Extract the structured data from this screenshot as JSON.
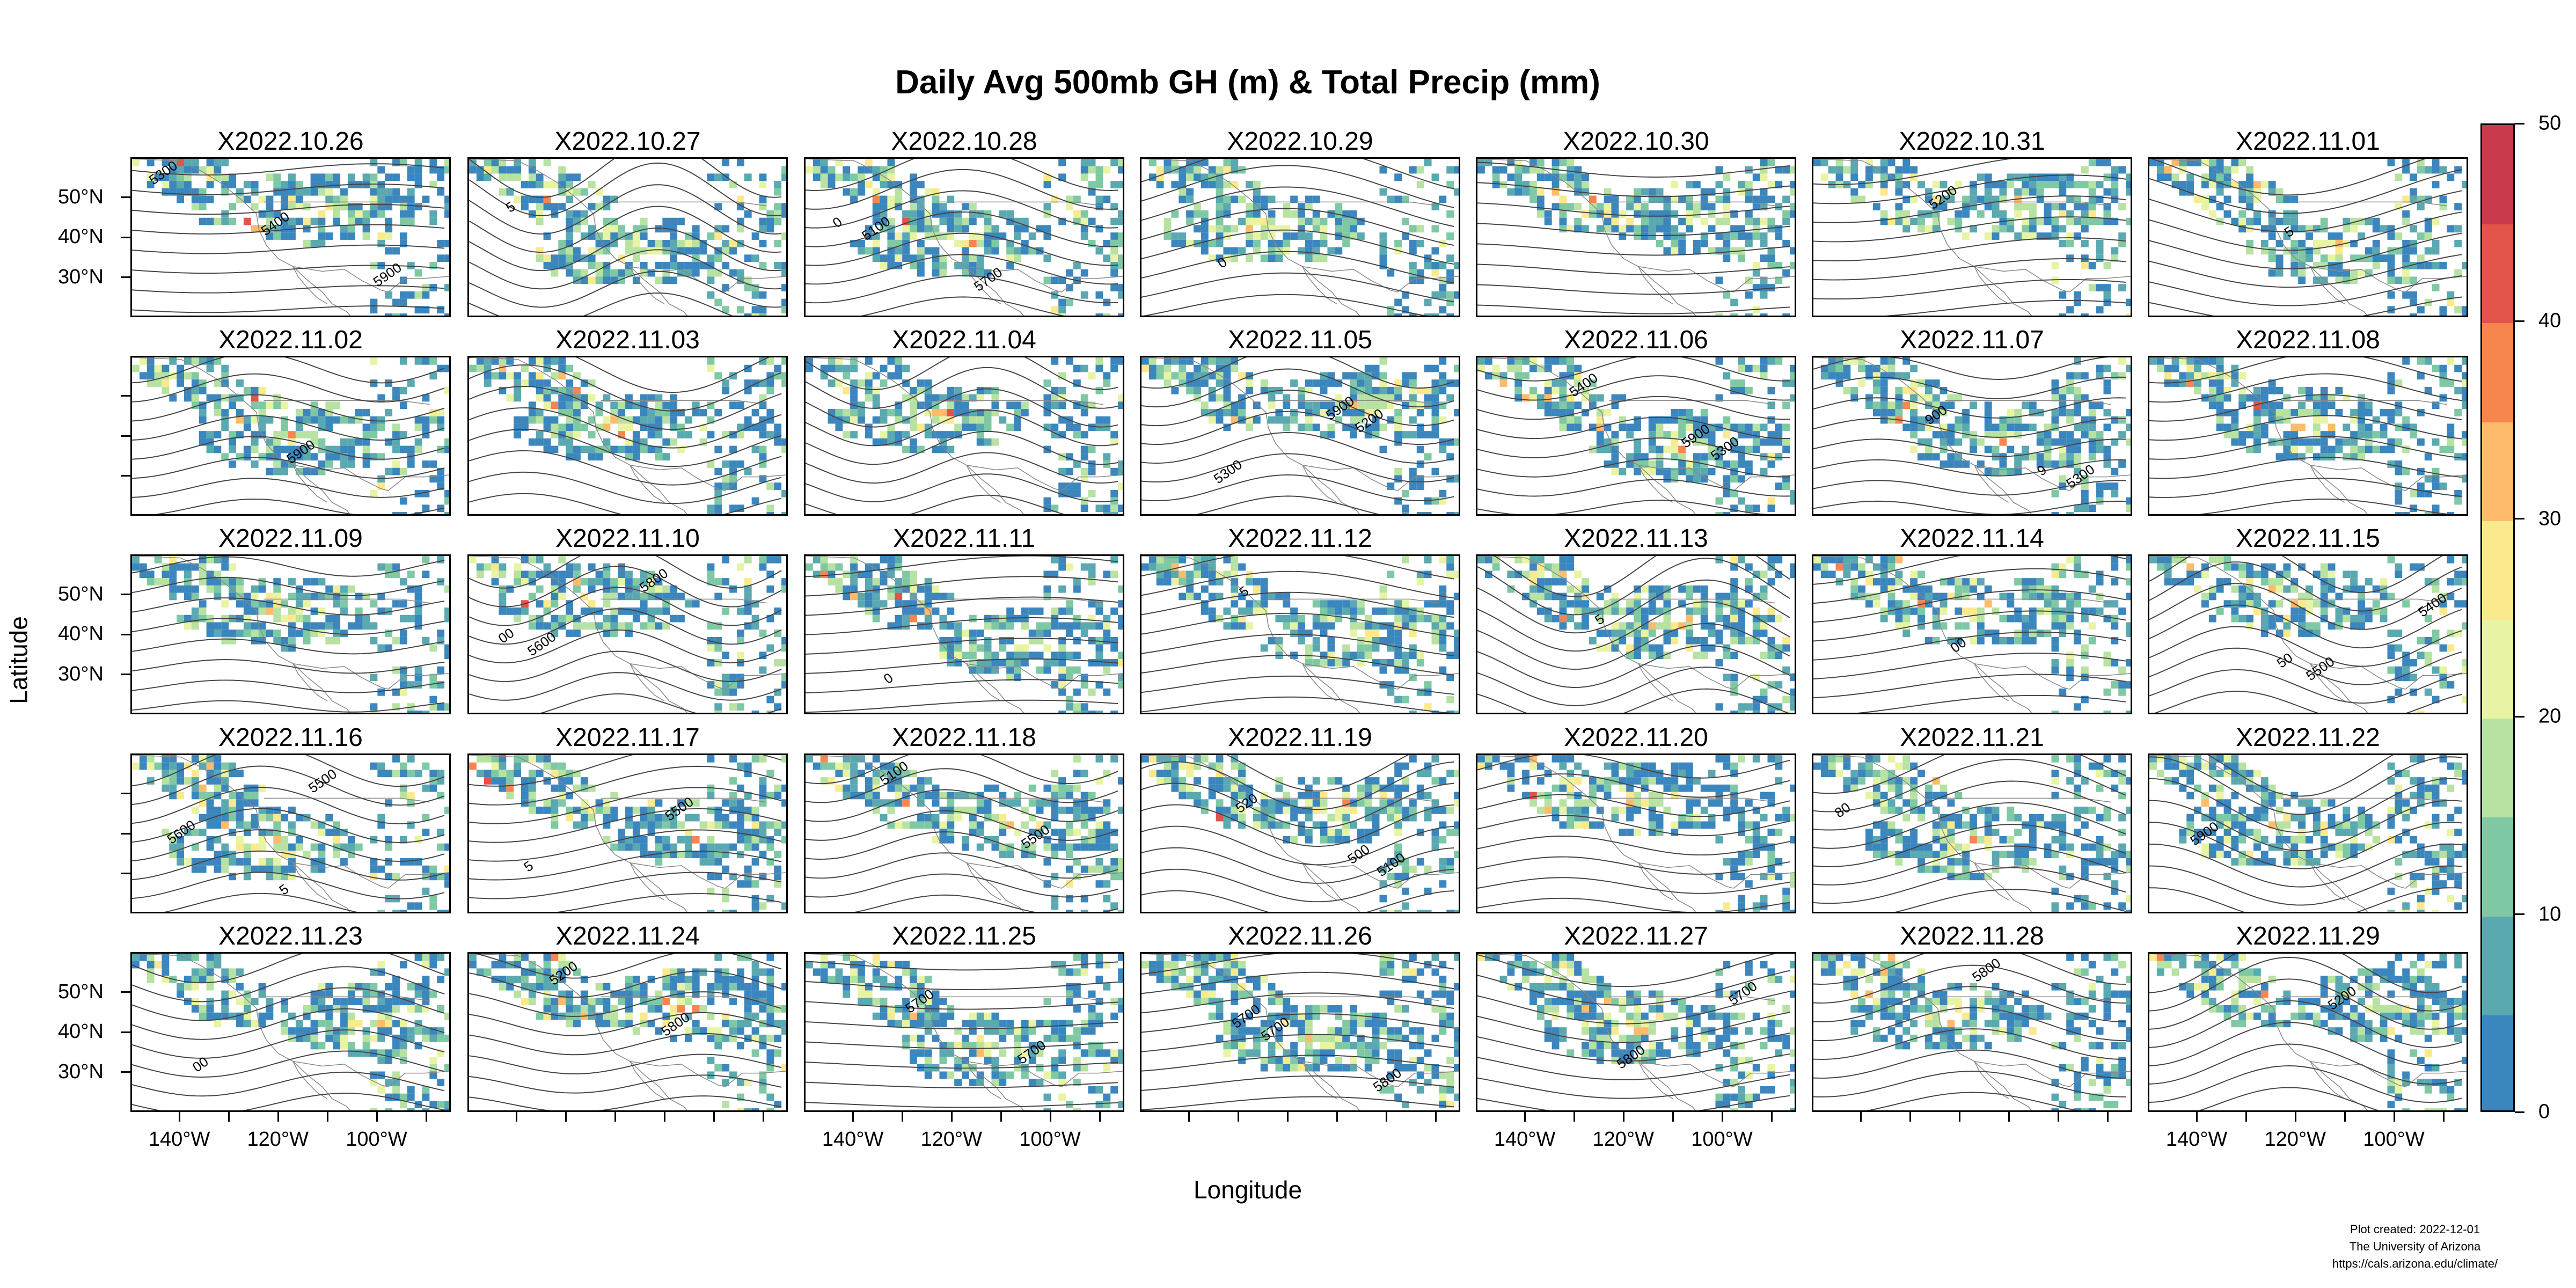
{
  "chart_data": {
    "type": "heatmap",
    "title": "Daily Avg 500mb GH (m) & Total Precip (mm)",
    "xlabel": "Longitude",
    "ylabel": "Latitude",
    "layout": {
      "rows": 5,
      "cols": 7
    },
    "panels": [
      {
        "title": "X2022.10.26",
        "contours": [
          "5300",
          "5400",
          "5900"
        ]
      },
      {
        "title": "X2022.10.27",
        "contours": [
          "5"
        ]
      },
      {
        "title": "X2022.10.28",
        "contours": [
          "5100",
          "5700",
          "0"
        ]
      },
      {
        "title": "X2022.10.29",
        "contours": [
          "0"
        ]
      },
      {
        "title": "X2022.10.30",
        "contours": []
      },
      {
        "title": "X2022.10.31",
        "contours": [
          "5200"
        ]
      },
      {
        "title": "X2022.11.01",
        "contours": [
          "5"
        ]
      },
      {
        "title": "X2022.11.02",
        "contours": [
          "5900"
        ]
      },
      {
        "title": "X2022.11.03",
        "contours": []
      },
      {
        "title": "X2022.11.04",
        "contours": []
      },
      {
        "title": "X2022.11.05",
        "contours": [
          "5200",
          "5300",
          "5900"
        ]
      },
      {
        "title": "X2022.11.06",
        "contours": [
          "5300",
          "5400",
          "5900"
        ]
      },
      {
        "title": "X2022.11.07",
        "contours": [
          "5300",
          "900",
          "9"
        ]
      },
      {
        "title": "X2022.11.08",
        "contours": []
      },
      {
        "title": "X2022.11.09",
        "contours": []
      },
      {
        "title": "X2022.11.10",
        "contours": [
          "5600",
          "5800",
          "00"
        ]
      },
      {
        "title": "X2022.11.11",
        "contours": [
          "0"
        ]
      },
      {
        "title": "X2022.11.12",
        "contours": [
          "5"
        ]
      },
      {
        "title": "X2022.11.13",
        "contours": [
          "5"
        ]
      },
      {
        "title": "X2022.11.14",
        "contours": [
          "00"
        ]
      },
      {
        "title": "X2022.11.15",
        "contours": [
          "5500",
          "5400",
          "50"
        ]
      },
      {
        "title": "X2022.11.16",
        "contours": [
          "5500",
          "5600",
          "5"
        ]
      },
      {
        "title": "X2022.11.17",
        "contours": [
          "5500",
          "5"
        ]
      },
      {
        "title": "X2022.11.18",
        "contours": [
          "5500",
          "5100"
        ]
      },
      {
        "title": "X2022.11.19",
        "contours": [
          "5100",
          "520",
          "500"
        ]
      },
      {
        "title": "X2022.11.20",
        "contours": []
      },
      {
        "title": "X2022.11.21",
        "contours": [
          "80"
        ]
      },
      {
        "title": "X2022.11.22",
        "contours": [
          "5900"
        ]
      },
      {
        "title": "X2022.11.23",
        "contours": [
          "00"
        ]
      },
      {
        "title": "X2022.11.24",
        "contours": [
          "5200",
          "5800"
        ]
      },
      {
        "title": "X2022.11.25",
        "contours": [
          "5700",
          "5700"
        ]
      },
      {
        "title": "X2022.11.26",
        "contours": [
          "5700",
          "5800",
          "5700"
        ]
      },
      {
        "title": "X2022.11.27",
        "contours": [
          "5800",
          "5700"
        ]
      },
      {
        "title": "X2022.11.28",
        "contours": [
          "5800"
        ]
      },
      {
        "title": "X2022.11.29",
        "contours": [
          "5200"
        ]
      }
    ],
    "x_ticks": [
      "140°W",
      "120°W",
      "100°W"
    ],
    "y_ticks": [
      "50°N",
      "40°N",
      "30°N"
    ],
    "xlim": [
      -150,
      -85
    ],
    "ylim": [
      20,
      60
    ],
    "colorbar": {
      "label_values": [
        "0",
        "10",
        "20",
        "30",
        "40",
        "50"
      ],
      "range": [
        0,
        50
      ],
      "colors": [
        "#3b86bd",
        "#5aa8b0",
        "#7fc8a4",
        "#b7e2a2",
        "#e8f4a4",
        "#fbe98e",
        "#fdbb6b",
        "#f6854e",
        "#e2534a",
        "#c93a4d"
      ]
    },
    "contour_color": "#444444"
  },
  "credits": {
    "line1": "Plot created: 2022-12-01",
    "line2": "The University of Arizona",
    "line3": "https://cals.arizona.edu/climate/"
  }
}
